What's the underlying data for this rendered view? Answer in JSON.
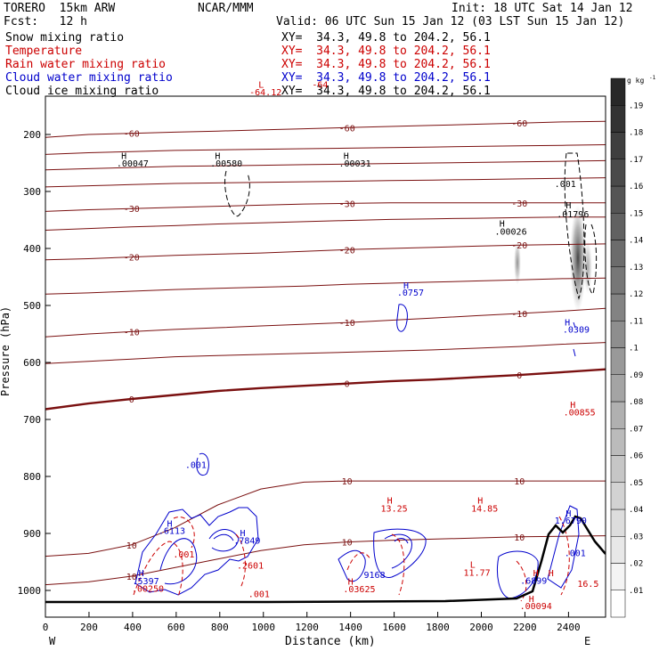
{
  "header": {
    "model": "TORERO  15km ARW",
    "org": "NCAR/MMM",
    "init": "Init: 18 UTC Sat 14 Jan 12",
    "fcst": "Fcst:   12 h",
    "valid": "Valid: 06 UTC Sun 15 Jan 12 (03 LST Sun 15 Jan 12)"
  },
  "fields": [
    {
      "name": "Snow mixing ratio",
      "xy": "XY=  34.3, 49.8 to 204.2, 56.1",
      "color": "#000000"
    },
    {
      "name": "Temperature",
      "xy": "XY=  34.3, 49.8 to 204.2, 56.1",
      "color": "#cc0000"
    },
    {
      "name": "Rain water mixing ratio",
      "xy": "XY=  34.3, 49.8 to 204.2, 56.1",
      "color": "#cc0000"
    },
    {
      "name": "Cloud water mixing ratio",
      "xy": "XY=  34.3, 49.8 to 204.2, 56.1",
      "color": "#0000cc"
    },
    {
      "name": "Cloud ice mixing ratio",
      "xy": "XY=  34.3, 49.8 to 204.2, 56.1",
      "color": "#000000"
    }
  ],
  "chart_data": {
    "type": "contour-cross-section",
    "xlabel": "Distance (km)",
    "ylabel": "Pressure (hPa)",
    "xlim": [
      0,
      2570
    ],
    "ylim": [
      1050,
      100
    ],
    "x_ticks": [
      "0",
      "200",
      "400",
      "600",
      "800",
      "1000",
      "1200",
      "1400",
      "1600",
      "1800",
      "2000",
      "2200",
      "2400"
    ],
    "y_ticks": [
      "200",
      "300",
      "400",
      "500",
      "600",
      "700",
      "800",
      "900",
      "1000"
    ],
    "left_endpoint": "W",
    "right_endpoint": "E",
    "temperature_contours": [
      {
        "label": "-60",
        "p": [
          205,
          200,
          198,
          196,
          194,
          192,
          190,
          188,
          186,
          184,
          182,
          180,
          178,
          177
        ]
      },
      {
        "label": "",
        "p": [
          235,
          232,
          230,
          228,
          227,
          226,
          225,
          224,
          223,
          222,
          221,
          220,
          219,
          218
        ]
      },
      {
        "label": "",
        "p": [
          262,
          260,
          258,
          256,
          255,
          254,
          253,
          252,
          251,
          250,
          249,
          248,
          247,
          246
        ]
      },
      {
        "label": "",
        "p": [
          292,
          290,
          288,
          286,
          285,
          284,
          283,
          282,
          281,
          280,
          279,
          278,
          277,
          276
        ]
      },
      {
        "label": "-30",
        "p": [
          335,
          332,
          330,
          328,
          326,
          324,
          322,
          321,
          320,
          320,
          320,
          320,
          320,
          320
        ]
      },
      {
        "label": "",
        "p": [
          368,
          365,
          362,
          360,
          357,
          355,
          353,
          351,
          349,
          348,
          347,
          346,
          345,
          345
        ]
      },
      {
        "label": "-20",
        "p": [
          420,
          418,
          415,
          412,
          410,
          408,
          405,
          402,
          400,
          398,
          396,
          394,
          393,
          392
        ]
      },
      {
        "label": "",
        "p": [
          480,
          478,
          475,
          472,
          470,
          468,
          466,
          463,
          461,
          459,
          457,
          455,
          453,
          452
        ]
      },
      {
        "label": "-10",
        "p": [
          555,
          550,
          546,
          542,
          539,
          536,
          533,
          530,
          526,
          522,
          518,
          514,
          510,
          505
        ]
      },
      {
        "label": "",
        "p": [
          602,
          598,
          594,
          590,
          588,
          586,
          584,
          582,
          580,
          578,
          575,
          572,
          568,
          565
        ]
      },
      {
        "label": "0",
        "p": [
          682,
          672,
          664,
          657,
          650,
          645,
          641,
          637,
          633,
          630,
          626,
          622,
          617,
          612
        ]
      },
      {
        "label": "10",
        "p": [
          940,
          935,
          920,
          890,
          850,
          822,
          810,
          808,
          808,
          808,
          808,
          808,
          808,
          808
        ]
      },
      {
        "label": "10",
        "p": [
          990,
          985,
          975,
          960,
          945,
          930,
          920,
          915,
          912,
          910,
          908,
          906,
          905,
          904
        ]
      }
    ],
    "annotations": [
      {
        "text": "L",
        "x": 990,
        "p": 118,
        "color": "#cc0000"
      },
      {
        "text": "-64.12",
        "x": 1010,
        "p": 131,
        "color": "#cc0000"
      },
      {
        "text": "-64",
        "x": 1260,
        "p": 118,
        "color": "#cc0000"
      },
      {
        "text": "H",
        "x": 360,
        "p": 243,
        "color": "#000000"
      },
      {
        "text": ".00047",
        "x": 400,
        "p": 256,
        "color": "#000000"
      },
      {
        "text": "H",
        "x": 790,
        "p": 243,
        "color": "#000000"
      },
      {
        "text": ".00580",
        "x": 830,
        "p": 256,
        "color": "#000000"
      },
      {
        "text": "H",
        "x": 1380,
        "p": 243,
        "color": "#000000"
      },
      {
        "text": ".00031",
        "x": 1420,
        "p": 256,
        "color": "#000000"
      },
      {
        "text": ".001",
        "x": 2385,
        "p": 292,
        "color": "#000000"
      },
      {
        "text": "H",
        "x": 2400,
        "p": 330,
        "color": "#000000"
      },
      {
        "text": ".01796",
        "x": 2420,
        "p": 345,
        "color": "#000000"
      },
      {
        "text": "H",
        "x": 2095,
        "p": 362,
        "color": "#000000"
      },
      {
        "text": ".00026",
        "x": 2135,
        "p": 376,
        "color": "#000000"
      },
      {
        "text": "H",
        "x": 1655,
        "p": 470,
        "color": "#0000cc"
      },
      {
        "text": ".0757",
        "x": 1675,
        "p": 483,
        "color": "#0000cc"
      },
      {
        "text": "H",
        "x": 2395,
        "p": 535,
        "color": "#0000cc"
      },
      {
        "text": ".0309",
        "x": 2435,
        "p": 548,
        "color": "#0000cc"
      },
      {
        "text": "H",
        "x": 2420,
        "p": 680,
        "color": "#cc0000"
      },
      {
        "text": ".00855",
        "x": 2450,
        "p": 693,
        "color": "#cc0000"
      },
      {
        "text": ".001",
        "x": 690,
        "p": 785,
        "color": "#0000cc"
      },
      {
        "text": "H",
        "x": 1580,
        "p": 848,
        "color": "#cc0000"
      },
      {
        "text": "13.25",
        "x": 1600,
        "p": 862,
        "color": "#cc0000"
      },
      {
        "text": "H",
        "x": 1995,
        "p": 848,
        "color": "#cc0000"
      },
      {
        "text": "14.85",
        "x": 2015,
        "p": 862,
        "color": "#cc0000"
      },
      {
        "text": "H",
        "x": 570,
        "p": 888,
        "color": "#0000cc"
      },
      {
        "text": ".6113",
        "x": 580,
        "p": 901,
        "color": "#0000cc"
      },
      {
        "text": "H",
        "x": 905,
        "p": 905,
        "color": "#0000cc"
      },
      {
        "text": ".7849",
        "x": 925,
        "p": 918,
        "color": "#0000cc"
      },
      {
        "text": "H",
        "x": 2400,
        "p": 870,
        "color": "#0000cc"
      },
      {
        "text": "1.6790",
        "x": 2410,
        "p": 883,
        "color": "#0000cc"
      },
      {
        "text": ".001",
        "x": 635,
        "p": 942,
        "color": "#cc0000"
      },
      {
        "text": ".2601",
        "x": 940,
        "p": 962,
        "color": "#cc0000"
      },
      {
        "text": ".001",
        "x": 2430,
        "p": 940,
        "color": "#0000cc"
      },
      {
        "text": "H",
        "x": 440,
        "p": 975,
        "color": "#0000cc"
      },
      {
        "text": ".5397",
        "x": 460,
        "p": 989,
        "color": "#0000cc"
      },
      {
        "text": ".00250",
        "x": 470,
        "p": 1002,
        "color": "#cc0000"
      },
      {
        "text": "H",
        "x": 1400,
        "p": 990,
        "color": "#cc0000"
      },
      {
        "text": ".03625",
        "x": 1440,
        "p": 1003,
        "color": "#cc0000"
      },
      {
        "text": "9168",
        "x": 1510,
        "p": 978,
        "color": "#0000cc"
      },
      {
        "text": "L",
        "x": 1960,
        "p": 960,
        "color": "#cc0000"
      },
      {
        "text": "11.77",
        "x": 1980,
        "p": 974,
        "color": "#cc0000"
      },
      {
        "text": ".6899",
        "x": 2240,
        "p": 988,
        "color": "#0000cc"
      },
      {
        "text": "H",
        "x": 2230,
        "p": 1020,
        "color": "#cc0000"
      },
      {
        "text": ".00094",
        "x": 2250,
        "p": 1033,
        "color": "#cc0000"
      },
      {
        "text": "16.5",
        "x": 2490,
        "p": 994,
        "color": "#cc0000"
      },
      {
        "text": "H",
        "x": 2250,
        "p": 975,
        "color": "#cc0000"
      },
      {
        "text": "H",
        "x": 2320,
        "p": 975,
        "color": "#cc0000"
      },
      {
        "text": ".001",
        "x": 980,
        "p": 1012,
        "color": "#cc0000"
      }
    ],
    "colorbar": {
      "unit": "g kg",
      "labels": [
        ".01",
        ".02",
        ".03",
        ".04",
        ".05",
        ".06",
        ".07",
        ".08",
        ".09",
        ".1",
        ".11",
        ".12",
        ".13",
        ".14",
        ".15",
        ".16",
        ".17",
        ".18",
        ".19"
      ]
    }
  }
}
